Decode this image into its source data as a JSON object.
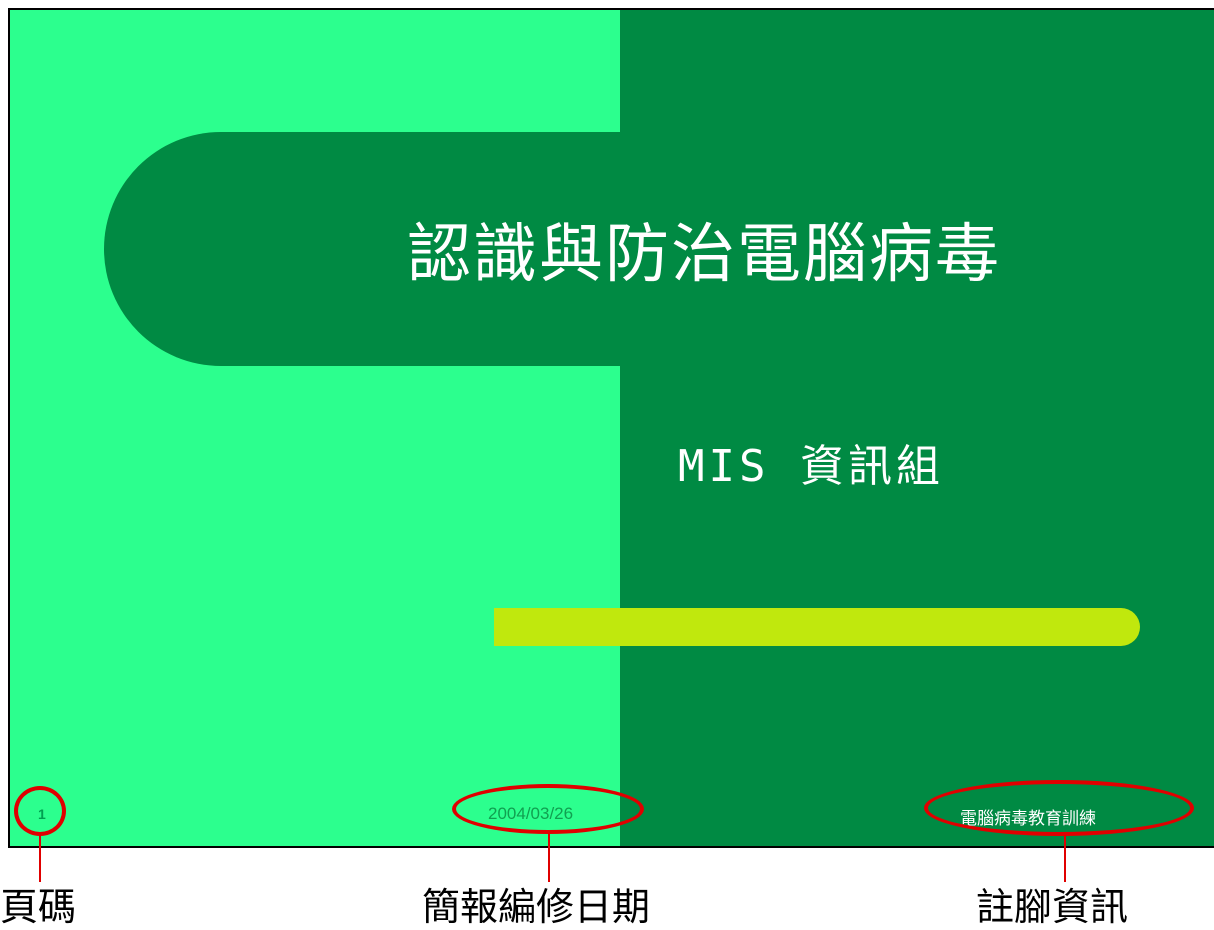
{
  "slide": {
    "title": "認識與防治電腦病毒",
    "subtitle": "MIS 資訊組",
    "footer": {
      "page_number": "1",
      "date": "2004/03/26",
      "note": "電腦病毒教育訓練"
    }
  },
  "annotations": {
    "page_number_label": "頁碼",
    "date_label": "簡報編修日期",
    "footer_label": "註腳資訊"
  },
  "colors": {
    "light_green": "#2cff8e",
    "dark_green": "#008a43",
    "accent_lime": "#c0e80d",
    "marker_red": "#e00000"
  }
}
